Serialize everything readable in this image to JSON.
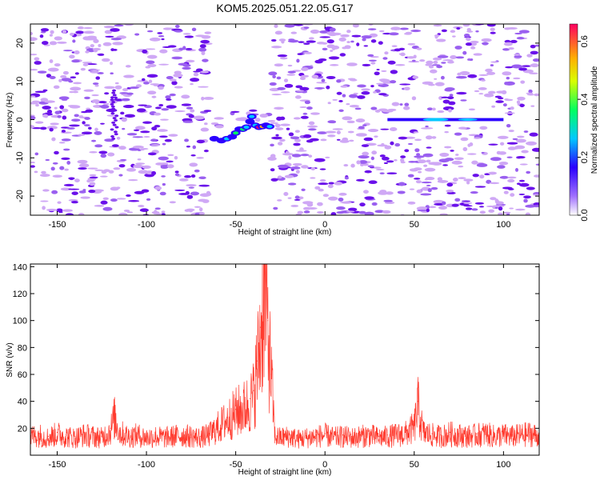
{
  "title": "KOM5.2025.051.22.05.G17",
  "chart_data": [
    {
      "type": "heatmap",
      "xlabel": "Height of straight line (km)",
      "ylabel": "Frequency (Hz)",
      "xlim": [
        -165,
        120
      ],
      "ylim": [
        -25,
        25
      ],
      "xticks": [
        -150,
        -100,
        -50,
        0,
        50,
        100
      ],
      "yticks": [
        -20,
        -10,
        0,
        10,
        20
      ],
      "colorbar": {
        "label": "Normalized spectral amplitude",
        "range": [
          0,
          0.66
        ],
        "ticks": [
          "0.0",
          "0.2",
          "0.4",
          "0.6"
        ]
      },
      "features": [
        {
          "x": [
            -120,
            -116
          ],
          "y": [
            -5,
            8
          ],
          "amplitude": 0.15
        },
        {
          "x": [
            -65,
            -30
          ],
          "y": [
            -7,
            2
          ],
          "amplitude": 0.3
        },
        {
          "x": [
            -40,
            -30
          ],
          "y": [
            -3,
            0
          ],
          "amplitude": 0.66
        },
        {
          "x": [
            35,
            105
          ],
          "y": [
            -0.5,
            0.5
          ],
          "amplitude": 0.3
        }
      ]
    },
    {
      "type": "line",
      "xlabel": "Height of straight line (km)",
      "ylabel": "SNR (v/v)",
      "xlim": [
        -165,
        120
      ],
      "ylim": [
        0,
        142
      ],
      "xticks": [
        -150,
        -100,
        -50,
        0,
        50,
        100
      ],
      "yticks": [
        20,
        40,
        60,
        80,
        100,
        120,
        140
      ],
      "series": [
        {
          "color": "#ff3b2f",
          "x": [
            -165,
            -160,
            -155,
            -150,
            -145,
            -140,
            -135,
            -130,
            -125,
            -120,
            -118,
            -115,
            -110,
            -105,
            -100,
            -95,
            -90,
            -85,
            -80,
            -75,
            -70,
            -65,
            -60,
            -55,
            -50,
            -45,
            -42,
            -40,
            -38,
            -36,
            -34,
            -32,
            -30,
            -28,
            -25,
            -20,
            -15,
            -10,
            -5,
            0,
            5,
            10,
            15,
            20,
            25,
            30,
            35,
            40,
            45,
            50,
            52,
            55,
            60,
            65,
            70,
            75,
            80,
            85,
            90,
            95,
            100,
            105,
            110,
            115,
            120
          ],
          "y": [
            15,
            16,
            14,
            17,
            15,
            14,
            16,
            15,
            14,
            20,
            30,
            18,
            15,
            16,
            14,
            15,
            14,
            15,
            16,
            15,
            14,
            16,
            22,
            28,
            34,
            38,
            42,
            48,
            70,
            95,
            140,
            100,
            60,
            15,
            14,
            15,
            13,
            14,
            15,
            16,
            14,
            15,
            14,
            15,
            16,
            14,
            15,
            16,
            17,
            22,
            40,
            18,
            16,
            15,
            17,
            16,
            15,
            16,
            17,
            15,
            16,
            15,
            16,
            17,
            15
          ]
        }
      ]
    }
  ],
  "colors": {
    "noise_light": "#cfa8f5",
    "noise_mid": "#9a5ff0",
    "noise_dark": "#6a10ea",
    "snr_line": "#ff3b2f"
  }
}
